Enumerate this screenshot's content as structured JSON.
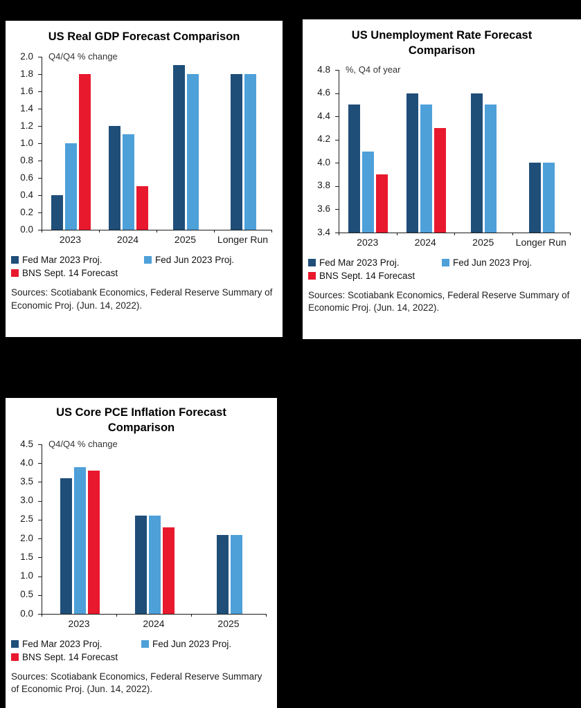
{
  "chart_data": [
    {
      "type": "bar",
      "title": "US Real GDP Forecast Comparison",
      "axis_note": "Q4/Q4 % change",
      "categories": [
        "2023",
        "2024",
        "2025",
        "Longer Run"
      ],
      "series": [
        {
          "name": "Fed Mar 2023 Proj.",
          "color": "#1F4E79",
          "values": [
            0.4,
            1.2,
            1.9,
            1.8
          ]
        },
        {
          "name": "Fed Jun 2023 Proj.",
          "color": "#4EA0D9",
          "values": [
            1.0,
            1.1,
            1.8,
            1.8
          ]
        },
        {
          "name": "BNS Sept. 14 Forecast",
          "color": "#E8192D",
          "values": [
            1.8,
            0.5,
            null,
            null
          ]
        }
      ],
      "ylim": [
        0.0,
        2.0
      ],
      "ystep": 0.2,
      "ydecimals": 1,
      "grid": false,
      "legend_position": "bottom",
      "sources": "Sources: Scotiabank Economics, Federal Reserve Summary of Economic Proj. (Jun. 14, 2022)."
    },
    {
      "type": "bar",
      "title": "US Unemployment Rate Forecast Comparison",
      "axis_note": "%, Q4 of year",
      "categories": [
        "2023",
        "2024",
        "2025",
        "Longer Run"
      ],
      "series": [
        {
          "name": "Fed Mar 2023 Proj.",
          "color": "#1F4E79",
          "values": [
            4.5,
            4.6,
            4.6,
            4.0
          ]
        },
        {
          "name": "Fed Jun 2023 Proj.",
          "color": "#4EA0D9",
          "values": [
            4.1,
            4.5,
            4.5,
            4.0
          ]
        },
        {
          "name": "BNS Sept. 14 Forecast",
          "color": "#E8192D",
          "values": [
            3.9,
            4.3,
            null,
            null
          ]
        }
      ],
      "ylim": [
        3.4,
        4.8
      ],
      "ystep": 0.2,
      "ydecimals": 1,
      "grid": false,
      "legend_position": "bottom",
      "sources": "Sources: Scotiabank Economics, Federal Reserve Summary of Economic Proj. (Jun. 14, 2022)."
    },
    {
      "type": "bar",
      "title": "US Core PCE Inflation Forecast Comparison",
      "axis_note": "Q4/Q4 % change",
      "categories": [
        "2023",
        "2024",
        "2025"
      ],
      "series": [
        {
          "name": "Fed Mar 2023 Proj.",
          "color": "#1F4E79",
          "values": [
            3.6,
            2.6,
            2.1
          ]
        },
        {
          "name": "Fed Jun 2023 Proj.",
          "color": "#4EA0D9",
          "values": [
            3.9,
            2.6,
            2.1
          ]
        },
        {
          "name": "BNS Sept. 14 Forecast",
          "color": "#E8192D",
          "values": [
            3.8,
            2.3,
            null
          ]
        }
      ],
      "ylim": [
        0.0,
        4.5
      ],
      "ystep": 0.5,
      "ydecimals": 1,
      "grid": false,
      "legend_position": "bottom",
      "sources": "Sources: Scotiabank Economics, Federal Reserve Summary of Economic Proj. (Jun. 14, 2022)."
    }
  ]
}
